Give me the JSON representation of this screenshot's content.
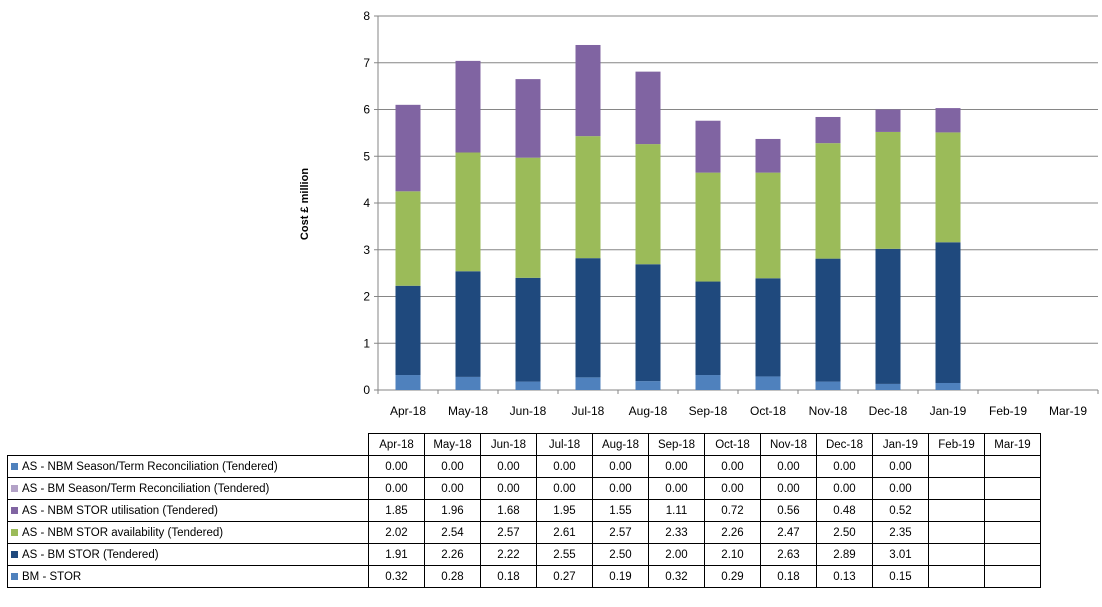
{
  "chart_data": {
    "type": "bar",
    "stacked": true,
    "ylabel": "Cost £ million",
    "ylim": [
      0,
      8
    ],
    "yticks": [
      0,
      1,
      2,
      3,
      4,
      5,
      6,
      7,
      8
    ],
    "grid": true,
    "categories": [
      "Apr-18",
      "May-18",
      "Jun-18",
      "Jul-18",
      "Aug-18",
      "Sep-18",
      "Oct-18",
      "Nov-18",
      "Dec-18",
      "Jan-19",
      "Feb-19",
      "Mar-19"
    ],
    "series": [
      {
        "name": "BM - STOR",
        "color": "#4f81bd",
        "values": [
          0.32,
          0.28,
          0.18,
          0.27,
          0.19,
          0.32,
          0.29,
          0.18,
          0.13,
          0.15,
          null,
          null
        ]
      },
      {
        "name": "AS - BM STOR (Tendered)",
        "color": "#1f497d",
        "values": [
          1.91,
          2.26,
          2.22,
          2.55,
          2.5,
          2.0,
          2.1,
          2.63,
          2.89,
          3.01,
          null,
          null
        ]
      },
      {
        "name": "AS - NBM STOR availability (Tendered)",
        "color": "#9bbb59",
        "values": [
          2.02,
          2.54,
          2.57,
          2.61,
          2.57,
          2.33,
          2.26,
          2.47,
          2.5,
          2.35,
          null,
          null
        ]
      },
      {
        "name": "AS - NBM STOR utilisation (Tendered)",
        "color": "#8064a2",
        "values": [
          1.85,
          1.96,
          1.68,
          1.95,
          1.55,
          1.11,
          0.72,
          0.56,
          0.48,
          0.52,
          null,
          null
        ]
      },
      {
        "name": "AS - BM Season/Term Reconciliation (Tendered)",
        "color": "#b3a2c7",
        "values": [
          0.0,
          0.0,
          0.0,
          0.0,
          0.0,
          0.0,
          0.0,
          0.0,
          0.0,
          0.0,
          null,
          null
        ]
      },
      {
        "name": "AS - NBM Season/Term Reconciliation (Tendered)",
        "color": "#4f81bd",
        "values": [
          0.0,
          0.0,
          0.0,
          0.0,
          0.0,
          0.0,
          0.0,
          0.0,
          0.0,
          0.0,
          null,
          null
        ]
      }
    ],
    "table_row_order": [
      "AS - NBM Season/Term Reconciliation (Tendered)",
      "AS - BM Season/Term Reconciliation (Tendered)",
      "AS - NBM STOR utilisation (Tendered)",
      "AS - NBM STOR availability (Tendered)",
      "AS - BM STOR (Tendered)",
      "BM - STOR"
    ]
  }
}
